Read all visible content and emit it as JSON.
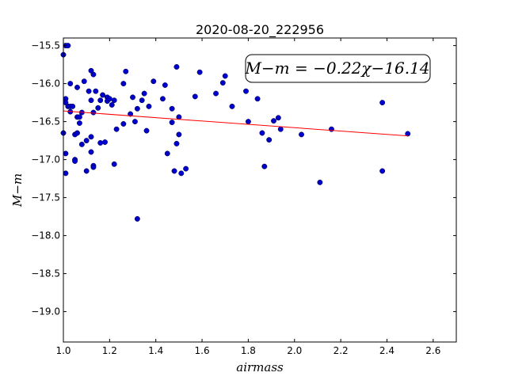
{
  "chart_data": {
    "type": "scatter",
    "title": "2020-08-20_222956",
    "xlabel": "airmass",
    "ylabel": "M−m",
    "xlim": [
      1.0,
      2.7
    ],
    "ylim": [
      -15.4,
      -19.4
    ],
    "y_inverted": true,
    "xticks": [
      1.0,
      1.2,
      1.4,
      1.6,
      1.8,
      2.0,
      2.2,
      2.4,
      2.6
    ],
    "xtick_labels": [
      "1.0",
      "1.2",
      "1.4",
      "1.6",
      "1.8",
      "2.0",
      "2.2",
      "2.4",
      "2.6"
    ],
    "yticks": [
      -15.5,
      -16.0,
      -16.5,
      -17.0,
      -17.5,
      -18.0,
      -18.5,
      -19.0
    ],
    "ytick_labels": [
      "−15.5",
      "−16.0",
      "−16.5",
      "−17.0",
      "−17.5",
      "−18.0",
      "−18.5",
      "−19.0"
    ],
    "annotation": "M−m = −0.22χ−16.14",
    "fit": {
      "slope": -0.22,
      "intercept": -16.14,
      "x_range": [
        1.0,
        2.49
      ],
      "color": "#ff0000"
    },
    "marker_color": "#0000cc",
    "grid": false,
    "points": [
      [
        1.0,
        -15.62
      ],
      [
        1.01,
        -15.5
      ],
      [
        1.02,
        -15.5
      ],
      [
        1.0,
        -16.65
      ],
      [
        1.01,
        -16.92
      ],
      [
        1.01,
        -17.18
      ],
      [
        1.01,
        -16.2
      ],
      [
        1.01,
        -16.25
      ],
      [
        1.02,
        -16.3
      ],
      [
        1.03,
        -16.37
      ],
      [
        1.03,
        -16.3
      ],
      [
        1.03,
        -16.0
      ],
      [
        1.04,
        -16.3
      ],
      [
        1.05,
        -16.67
      ],
      [
        1.05,
        -17.0
      ],
      [
        1.05,
        -17.02
      ],
      [
        1.06,
        -16.05
      ],
      [
        1.06,
        -16.44
      ],
      [
        1.06,
        -16.65
      ],
      [
        1.07,
        -16.52
      ],
      [
        1.07,
        -16.44
      ],
      [
        1.08,
        -16.38
      ],
      [
        1.08,
        -16.8
      ],
      [
        1.09,
        -15.97
      ],
      [
        1.1,
        -17.15
      ],
      [
        1.1,
        -16.75
      ],
      [
        1.11,
        -16.1
      ],
      [
        1.12,
        -16.22
      ],
      [
        1.12,
        -16.7
      ],
      [
        1.12,
        -16.9
      ],
      [
        1.12,
        -15.83
      ],
      [
        1.13,
        -15.88
      ],
      [
        1.13,
        -17.08
      ],
      [
        1.13,
        -17.1
      ],
      [
        1.13,
        -16.38
      ],
      [
        1.14,
        -16.1
      ],
      [
        1.15,
        -16.32
      ],
      [
        1.16,
        -16.22
      ],
      [
        1.16,
        -16.78
      ],
      [
        1.17,
        -16.15
      ],
      [
        1.18,
        -16.77
      ],
      [
        1.19,
        -16.18
      ],
      [
        1.19,
        -16.23
      ],
      [
        1.2,
        -16.2
      ],
      [
        1.21,
        -16.28
      ],
      [
        1.22,
        -16.22
      ],
      [
        1.22,
        -17.06
      ],
      [
        1.23,
        -16.6
      ],
      [
        1.26,
        -16.53
      ],
      [
        1.26,
        -16.0
      ],
      [
        1.27,
        -15.84
      ],
      [
        1.29,
        -16.4
      ],
      [
        1.3,
        -16.18
      ],
      [
        1.31,
        -16.5
      ],
      [
        1.32,
        -17.78
      ],
      [
        1.32,
        -16.33
      ],
      [
        1.34,
        -16.22
      ],
      [
        1.35,
        -16.13
      ],
      [
        1.36,
        -16.62
      ],
      [
        1.37,
        -16.3
      ],
      [
        1.39,
        -15.97
      ],
      [
        1.43,
        -16.2
      ],
      [
        1.44,
        -16.02
      ],
      [
        1.45,
        -16.92
      ],
      [
        1.47,
        -16.33
      ],
      [
        1.47,
        -16.51
      ],
      [
        1.48,
        -17.15
      ],
      [
        1.49,
        -15.78
      ],
      [
        1.49,
        -16.79
      ],
      [
        1.5,
        -16.44
      ],
      [
        1.5,
        -16.67
      ],
      [
        1.51,
        -17.18
      ],
      [
        1.53,
        -17.12
      ],
      [
        1.57,
        -16.17
      ],
      [
        1.59,
        -15.85
      ],
      [
        1.66,
        -16.13
      ],
      [
        1.69,
        -15.99
      ],
      [
        1.7,
        -15.9
      ],
      [
        1.73,
        -16.3
      ],
      [
        1.79,
        -16.1
      ],
      [
        1.8,
        -16.5
      ],
      [
        1.84,
        -16.2
      ],
      [
        1.86,
        -16.65
      ],
      [
        1.87,
        -17.09
      ],
      [
        1.89,
        -16.74
      ],
      [
        1.91,
        -16.49
      ],
      [
        1.93,
        -16.45
      ],
      [
        1.94,
        -16.6
      ],
      [
        2.03,
        -16.67
      ],
      [
        2.11,
        -17.3
      ],
      [
        2.16,
        -16.6
      ],
      [
        2.38,
        -16.25
      ],
      [
        2.38,
        -17.15
      ],
      [
        2.49,
        -16.66
      ]
    ]
  }
}
